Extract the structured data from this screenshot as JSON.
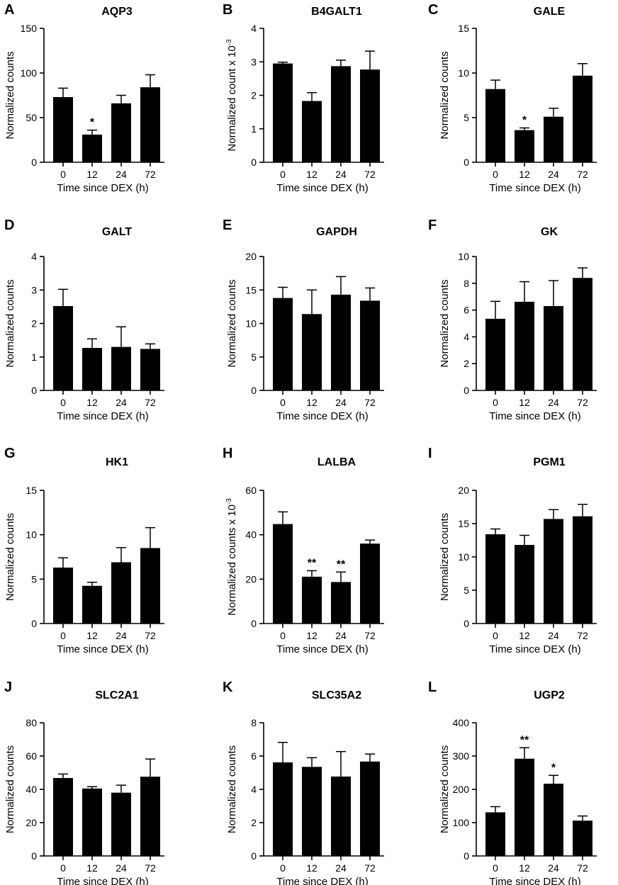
{
  "chart_data": [
    {
      "type": "bar",
      "letter": "A",
      "title": "AQP3",
      "ylabel": "Normalized counts",
      "ylabel_sup": "",
      "xlabel": "Time since DEX (h)",
      "categories": [
        "0",
        "12",
        "24",
        "72"
      ],
      "values": [
        73,
        31,
        66,
        84
      ],
      "errors": [
        10,
        5,
        9,
        14
      ],
      "ylim": [
        0,
        150
      ],
      "yticks": [
        0,
        50,
        100,
        150
      ],
      "significance": [
        "",
        "*",
        "",
        ""
      ]
    },
    {
      "type": "bar",
      "letter": "B",
      "title": "B4GALT1",
      "ylabel": "Normalized count x 10",
      "ylabel_sup": "-3",
      "xlabel": "Time since DEX (h)",
      "categories": [
        "0",
        "12",
        "24",
        "72"
      ],
      "values": [
        2.95,
        1.83,
        2.87,
        2.77
      ],
      "errors": [
        0.04,
        0.25,
        0.18,
        0.55
      ],
      "ylim": [
        0,
        4
      ],
      "yticks": [
        0,
        1,
        2,
        3,
        4
      ],
      "significance": [
        "",
        "",
        "",
        ""
      ]
    },
    {
      "type": "bar",
      "letter": "C",
      "title": "GALE",
      "ylabel": "Normalized counts",
      "ylabel_sup": "",
      "xlabel": "Time since DEX (h)",
      "categories": [
        "0",
        "12",
        "24",
        "72"
      ],
      "values": [
        8.2,
        3.6,
        5.1,
        9.7
      ],
      "errors": [
        1.0,
        0.25,
        0.95,
        1.35
      ],
      "ylim": [
        0,
        15
      ],
      "yticks": [
        0,
        5,
        10,
        15
      ],
      "significance": [
        "",
        "*",
        "",
        ""
      ]
    },
    {
      "type": "bar",
      "letter": "D",
      "title": "GALT",
      "ylabel": "Normalized counts",
      "ylabel_sup": "",
      "xlabel": "Time since DEX (h)",
      "categories": [
        "0",
        "12",
        "24",
        "72"
      ],
      "values": [
        2.52,
        1.27,
        1.3,
        1.24
      ],
      "errors": [
        0.5,
        0.27,
        0.6,
        0.15
      ],
      "ylim": [
        0,
        4
      ],
      "yticks": [
        0,
        1,
        2,
        3,
        4
      ],
      "significance": [
        "",
        "",
        "",
        ""
      ]
    },
    {
      "type": "bar",
      "letter": "E",
      "title": "GAPDH",
      "ylabel": "Normalized counts",
      "ylabel_sup": "",
      "xlabel": "Time since DEX (h)",
      "categories": [
        "0",
        "12",
        "24",
        "72"
      ],
      "values": [
        13.8,
        11.4,
        14.3,
        13.4
      ],
      "errors": [
        1.6,
        3.6,
        2.7,
        1.9
      ],
      "ylim": [
        0,
        20
      ],
      "yticks": [
        0,
        5,
        10,
        15,
        20
      ],
      "significance": [
        "",
        "",
        "",
        ""
      ]
    },
    {
      "type": "bar",
      "letter": "F",
      "title": "GK",
      "ylabel": "Normalized counts",
      "ylabel_sup": "",
      "xlabel": "Time since DEX (h)",
      "categories": [
        "0",
        "12",
        "24",
        "72"
      ],
      "values": [
        5.35,
        6.62,
        6.3,
        8.4
      ],
      "errors": [
        1.3,
        1.5,
        1.9,
        0.75
      ],
      "ylim": [
        0,
        10
      ],
      "yticks": [
        0,
        2,
        4,
        6,
        8,
        10
      ],
      "significance": [
        "",
        "",
        "",
        ""
      ]
    },
    {
      "type": "bar",
      "letter": "G",
      "title": "HK1",
      "ylabel": "Normalized counts",
      "ylabel_sup": "",
      "xlabel": "Time since DEX (h)",
      "categories": [
        "0",
        "12",
        "24",
        "72"
      ],
      "values": [
        6.3,
        4.25,
        6.9,
        8.5
      ],
      "errors": [
        1.1,
        0.4,
        1.65,
        2.3
      ],
      "ylim": [
        0,
        15
      ],
      "yticks": [
        0,
        5,
        10,
        15
      ],
      "significance": [
        "",
        "",
        "",
        ""
      ]
    },
    {
      "type": "bar",
      "letter": "H",
      "title": "LALBA",
      "ylabel": "Normalized counts x 10",
      "ylabel_sup": "-3",
      "xlabel": "Time since DEX (h)",
      "categories": [
        "0",
        "12",
        "24",
        "72"
      ],
      "values": [
        44.8,
        21.1,
        18.7,
        36
      ],
      "errors": [
        5.5,
        2.7,
        4.5,
        1.6
      ],
      "ylim": [
        0,
        60
      ],
      "yticks": [
        0,
        20,
        40,
        60
      ],
      "significance": [
        "",
        "**",
        "**",
        ""
      ]
    },
    {
      "type": "bar",
      "letter": "I",
      "title": "PGM1",
      "ylabel": "Normalized counts",
      "ylabel_sup": "",
      "xlabel": "Time since DEX (h)",
      "categories": [
        "0",
        "12",
        "24",
        "72"
      ],
      "values": [
        13.4,
        11.8,
        15.7,
        16.1
      ],
      "errors": [
        0.8,
        1.45,
        1.4,
        1.8
      ],
      "ylim": [
        0,
        20
      ],
      "yticks": [
        0,
        5,
        10,
        15,
        20
      ],
      "significance": [
        "",
        "",
        "",
        ""
      ]
    },
    {
      "type": "bar",
      "letter": "J",
      "title": "SLC2A1",
      "ylabel": "Normalized counts",
      "ylabel_sup": "",
      "xlabel": "Time since DEX (h)",
      "categories": [
        "0",
        "12",
        "24",
        "72"
      ],
      "values": [
        46.8,
        40.5,
        38,
        47.6
      ],
      "errors": [
        2.4,
        1.1,
        4.5,
        10.6
      ],
      "ylim": [
        0,
        80
      ],
      "yticks": [
        0,
        20,
        40,
        60,
        80
      ],
      "significance": [
        "",
        "",
        "",
        ""
      ]
    },
    {
      "type": "bar",
      "letter": "K",
      "title": "SLC35A2",
      "ylabel": "Normalized counts",
      "ylabel_sup": "",
      "xlabel": "Time since DEX (h)",
      "categories": [
        "0",
        "12",
        "24",
        "72"
      ],
      "values": [
        5.62,
        5.35,
        4.77,
        5.67
      ],
      "errors": [
        1.2,
        0.55,
        1.5,
        0.45
      ],
      "ylim": [
        0,
        8
      ],
      "yticks": [
        0,
        2,
        4,
        6,
        8
      ],
      "significance": [
        "",
        "",
        "",
        ""
      ]
    },
    {
      "type": "bar",
      "letter": "L",
      "title": "UGP2",
      "ylabel": "Normalized counts",
      "ylabel_sup": "",
      "xlabel": "Time since DEX (h)",
      "categories": [
        "0",
        "12",
        "24",
        "72"
      ],
      "values": [
        131,
        292,
        217,
        106
      ],
      "errors": [
        17,
        33,
        25,
        14
      ],
      "ylim": [
        0,
        400
      ],
      "yticks": [
        0,
        100,
        200,
        300,
        400
      ],
      "significance": [
        "",
        "**",
        "*",
        ""
      ]
    }
  ]
}
